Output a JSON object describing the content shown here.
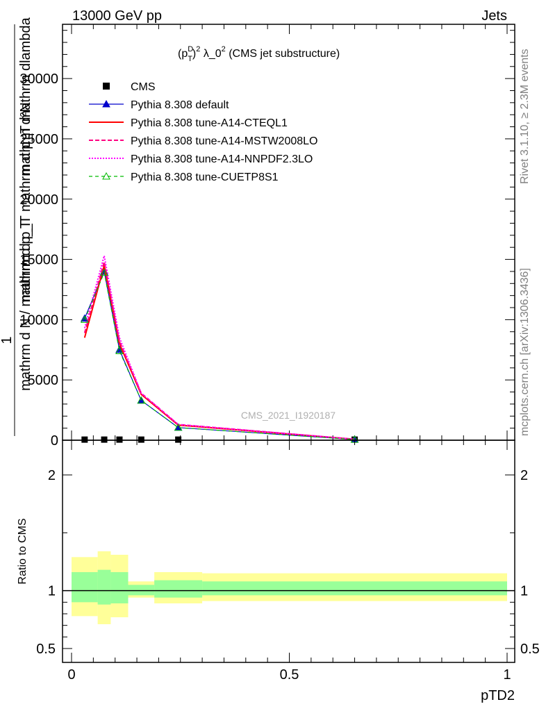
{
  "header": {
    "left": "13000 GeV pp",
    "right": "Jets"
  },
  "side": {
    "rivet": "Rivet 3.1.10, ≥ 2.3M events",
    "mcplots": "mcplots.cern.ch [arXiv:1306.3436]"
  },
  "chart_data": [
    {
      "type": "line",
      "title": "(p_T^D)^2 λ_0^2 (CMS jet substructure)",
      "title_parts": {
        "a": "(p",
        "sup1": "D",
        "sub1": "T",
        "b": ")",
        "sup2": "2",
        "c": " λ_0",
        "sup3": "2",
        "d": " (CMS jet substructure)"
      },
      "ylabel_top": "mathrm d²N",
      "ylabel_mid": "mathrm d p_T mathrm d p_T mathrm dlambda",
      "ylabel_one": "1",
      "ylabel_bottom": "mathrm d N / mathrm d p_T",
      "watermark": "CMS_2021_I1920187",
      "xlim": [
        0,
        1
      ],
      "ylim": [
        0,
        34500
      ],
      "y_ticks": [
        0,
        5000,
        10000,
        15000,
        20000,
        25000,
        30000
      ],
      "y_tick_labels": [
        "0",
        "5000",
        "10000",
        "15000",
        "20000",
        "25000",
        "30000"
      ],
      "x": [
        0.03,
        0.075,
        0.11,
        0.16,
        0.245,
        0.65
      ],
      "series": [
        {
          "name": "CMS",
          "color": "#000000",
          "values": [
            50,
            50,
            50,
            50,
            50,
            50
          ]
        },
        {
          "name": "Pythia 8.308 default",
          "color": "#0000cc",
          "values": [
            10100,
            14000,
            7500,
            3300,
            1050,
            60
          ]
        },
        {
          "name": "Pythia 8.308 tune-A14-CTEQL1",
          "color": "#ff0000",
          "values": [
            8500,
            14500,
            8000,
            3800,
            1250,
            80
          ]
        },
        {
          "name": "Pythia 8.308 tune-A14-MSTW2008LO",
          "color": "#ff0080",
          "values": [
            8900,
            14800,
            8200,
            3900,
            1300,
            80
          ]
        },
        {
          "name": "Pythia 8.308 tune-A14-NNPDF2.3LO",
          "color": "#ff00ff",
          "values": [
            9300,
            15300,
            8500,
            3900,
            1300,
            80
          ]
        },
        {
          "name": "Pythia 8.308 tune-CUETP8S1",
          "color": "#00bb00",
          "values": [
            10000,
            13900,
            7400,
            3300,
            1050,
            60
          ]
        }
      ]
    },
    {
      "type": "area",
      "ylabel": "Ratio to CMS",
      "xlabel": "pTD2",
      "xlim": [
        0,
        1
      ],
      "ylim": [
        0.38,
        2.3
      ],
      "y_ticks": [
        0.5,
        1,
        2
      ],
      "y_tick_labels": [
        "0.5",
        "1",
        "2"
      ],
      "x_ticks": [
        0,
        0.5,
        1
      ],
      "x_tick_labels": [
        "0",
        "0.5",
        "1"
      ],
      "bins": [
        0,
        0.06,
        0.09,
        0.13,
        0.19,
        0.3,
        1
      ],
      "green_band": {
        "color": "#99ff99",
        "lo": [
          0.9,
          0.88,
          0.89,
          0.96,
          0.94,
          0.96
        ],
        "hi": [
          1.16,
          1.18,
          1.16,
          1.05,
          1.09,
          1.08
        ]
      },
      "yellow_band": {
        "color": "#ffff99",
        "lo": [
          0.78,
          0.71,
          0.77,
          0.94,
          0.89,
          0.91
        ],
        "hi": [
          1.29,
          1.34,
          1.31,
          1.08,
          1.16,
          1.15
        ]
      }
    }
  ]
}
